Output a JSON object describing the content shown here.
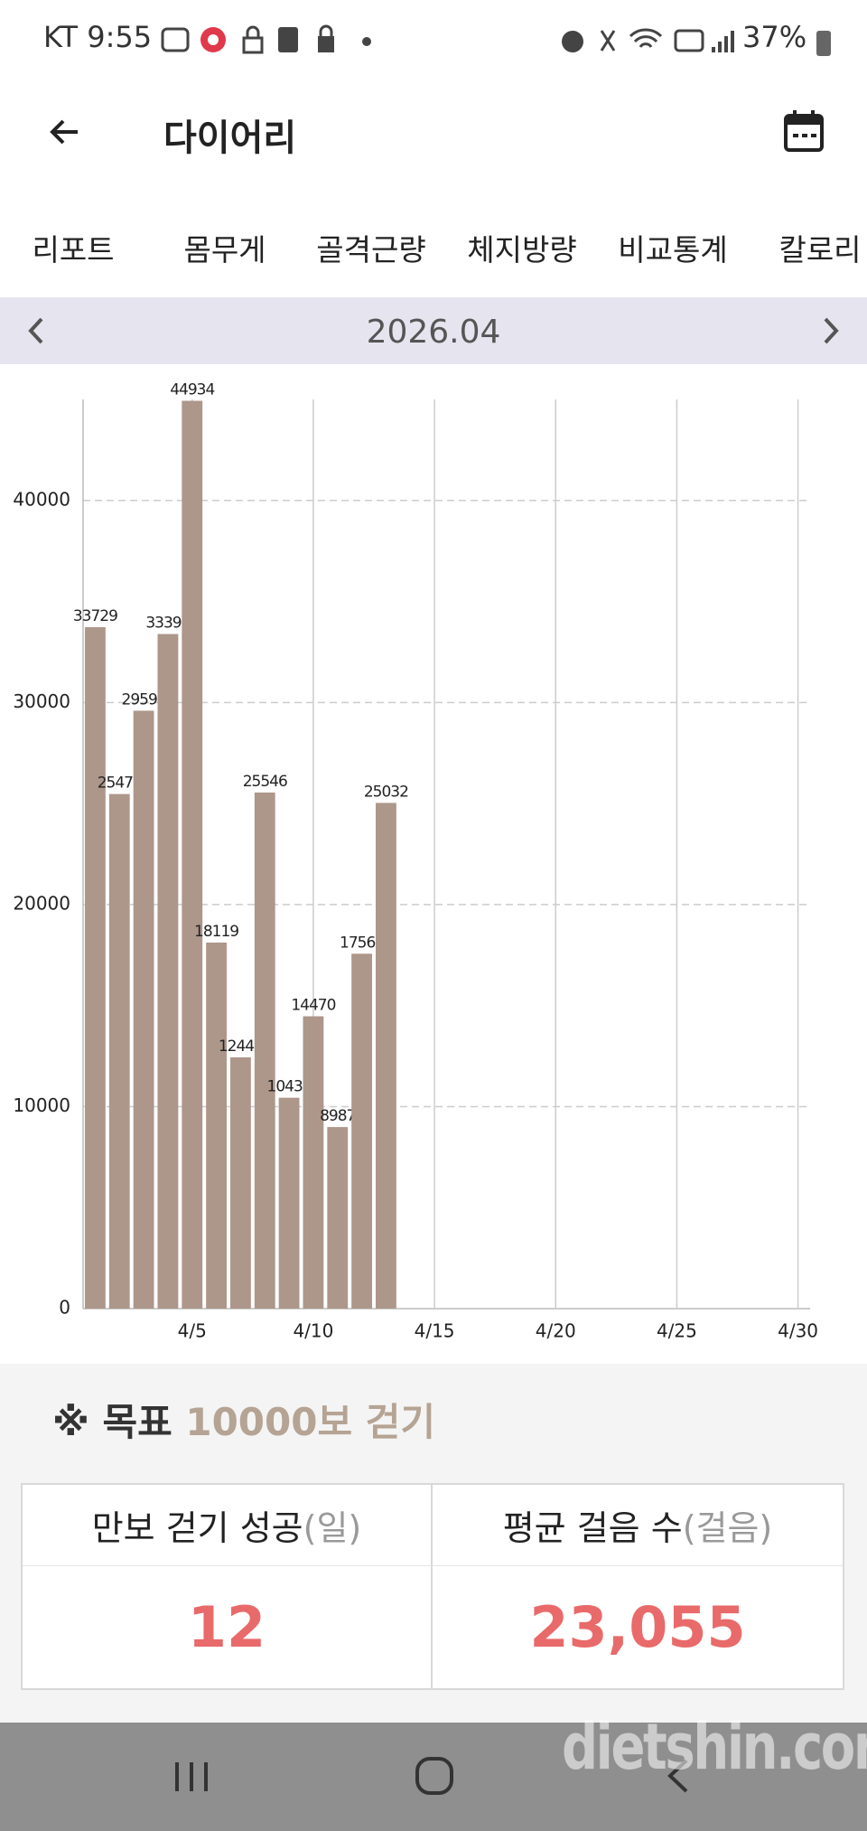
{
  "status_bar": {
    "carrier_time": "KT 9:55",
    "battery": "37%"
  },
  "header": {
    "title": "다이어리"
  },
  "tabs": [
    "리포트",
    "몸무게",
    "골격근량",
    "체지방량",
    "비교통계",
    "칼로리"
  ],
  "month": "2026.04",
  "chart_data": {
    "type": "bar",
    "x": [
      1,
      2,
      3,
      4,
      5,
      6,
      7,
      8,
      9,
      10,
      11,
      12,
      13
    ],
    "values": [
      33729,
      25470,
      29594,
      33390,
      44934,
      18119,
      12440,
      25546,
      10438,
      14470,
      8987,
      17566,
      25032
    ],
    "color": "#ad968a",
    "xlim": [
      0.5,
      30.5
    ],
    "xticks": [
      {
        "value": 5,
        "label": "4/5"
      },
      {
        "value": 10,
        "label": "4/10"
      },
      {
        "value": 15,
        "label": "4/15"
      },
      {
        "value": 20,
        "label": "4/20"
      },
      {
        "value": 25,
        "label": "4/25"
      },
      {
        "value": 30,
        "label": "4/30"
      }
    ],
    "ylim": [
      0,
      45000
    ],
    "yticks": [
      0,
      10000,
      20000,
      30000,
      40000
    ],
    "grid": true
  },
  "goal": {
    "mark": "※ 목표",
    "target": "10000보 걷기"
  },
  "stats": {
    "headers": [
      {
        "label": "만보 걷기 성공",
        "unit": "(일)"
      },
      {
        "label": "평균 걸음 수",
        "unit": "(걸음)"
      }
    ],
    "values": [
      12,
      "23,055"
    ]
  },
  "watermark": "dietshin.com"
}
